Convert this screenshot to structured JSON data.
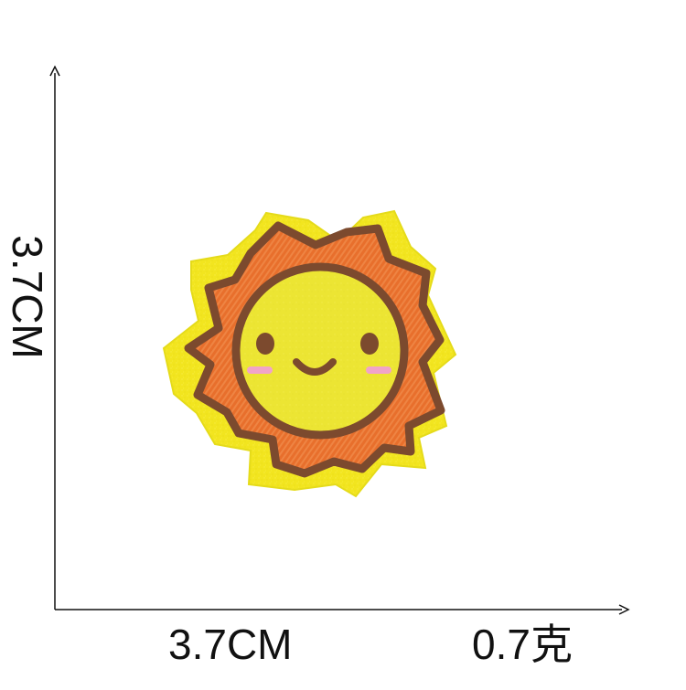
{
  "labels": {
    "width_dimension": "3.7CM",
    "height_dimension": "3.7CM",
    "weight": "0.7克"
  },
  "product": {
    "icon": "smiling-sun-icon"
  },
  "colors": {
    "felt_yellow": "#f2e51f",
    "face_yellow": "#ece533",
    "ray_orange": "#e86f2c",
    "ray_highlight": "#f08b4b",
    "outline_brown": "#7c4a2e",
    "cheek_pink": "#f1a4c8",
    "axis_black": "#111111"
  }
}
